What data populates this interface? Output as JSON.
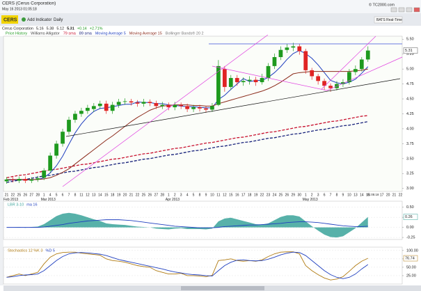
{
  "header": {
    "title": "CERS (Cerus Corporation)",
    "timestamp": "May 16 2013 01:05:18",
    "copyright": "© TC2000.com"
  },
  "toolbar": {
    "symbol": "CERS",
    "add_indicator": "Add Indicator",
    "period": "Daily",
    "feed": "BATS Real-Time"
  },
  "quote": {
    "name": "Cerus Corporation",
    "change": "+0.14",
    "change_pct": "+2.71%"
  },
  "chart_data": [
    {
      "type": "candlestick",
      "name": "Price History",
      "up_color": "#1e9a1e",
      "down_color": "#e02424",
      "categories": [
        "21",
        "22",
        "25",
        "26",
        "27",
        "28",
        "1",
        "4",
        "5",
        "6",
        "7",
        "8",
        "11",
        "12",
        "13",
        "14",
        "15",
        "18",
        "19",
        "20",
        "21",
        "22",
        "25",
        "26",
        "27",
        "28",
        "1",
        "2",
        "3",
        "4",
        "5",
        "8",
        "9",
        "10",
        "11",
        "12",
        "15",
        "16",
        "17",
        "18",
        "19",
        "22",
        "23",
        "24",
        "25",
        "26",
        "29",
        "30",
        "1",
        "2",
        "3",
        "6",
        "7",
        "8",
        "9",
        "10",
        "13",
        "14",
        "15"
      ],
      "month_labels": [
        "Feb 2013",
        null,
        null,
        null,
        null,
        null,
        "Mar 2013",
        null,
        null,
        null,
        null,
        null,
        null,
        null,
        null,
        null,
        null,
        null,
        null,
        null,
        null,
        null,
        null,
        null,
        null,
        null,
        "Apr 2013",
        null,
        null,
        null,
        null,
        null,
        null,
        null,
        null,
        null,
        null,
        null,
        null,
        null,
        null,
        null,
        null,
        null,
        null,
        null,
        null,
        null,
        "May 2013",
        null,
        null,
        null,
        null,
        null,
        null,
        null,
        null,
        null,
        null
      ],
      "open": [
        3.12,
        3.15,
        3.13,
        3.16,
        3.13,
        3.15,
        3.18,
        3.3,
        3.55,
        3.75,
        3.95,
        4.15,
        4.25,
        4.3,
        4.33,
        4.38,
        4.42,
        4.3,
        4.4,
        4.45,
        4.46,
        4.44,
        4.42,
        4.45,
        4.43,
        4.38,
        4.4,
        4.36,
        4.4,
        4.38,
        4.33,
        4.36,
        4.34,
        4.32,
        4.4,
        5.0,
        4.7,
        4.85,
        4.78,
        4.8,
        4.82,
        4.78,
        4.85,
        5.05,
        5.2,
        5.32,
        5.36,
        5.38,
        5.3,
        4.98,
        4.88,
        4.8,
        4.72,
        4.68,
        4.75,
        4.78,
        4.95,
        5.0,
        5.16
      ],
      "high": [
        3.19,
        3.19,
        3.2,
        3.2,
        3.19,
        3.21,
        3.34,
        3.6,
        3.8,
        4.0,
        4.2,
        4.3,
        4.35,
        4.4,
        4.43,
        4.47,
        4.47,
        4.45,
        4.5,
        4.51,
        4.5,
        4.48,
        4.5,
        4.49,
        4.47,
        4.45,
        4.44,
        4.45,
        4.44,
        4.42,
        4.4,
        4.4,
        4.38,
        4.43,
        5.15,
        5.05,
        4.9,
        4.9,
        4.86,
        4.88,
        4.87,
        4.92,
        5.1,
        5.26,
        5.38,
        5.42,
        5.44,
        5.42,
        5.34,
        5.02,
        4.92,
        4.84,
        4.76,
        4.8,
        4.83,
        5.0,
        5.06,
        5.2,
        5.38
      ],
      "low": [
        3.08,
        3.1,
        3.09,
        3.09,
        3.09,
        3.11,
        3.14,
        3.26,
        3.5,
        3.7,
        3.9,
        4.1,
        4.2,
        4.25,
        4.28,
        4.33,
        4.25,
        4.25,
        4.35,
        4.4,
        4.39,
        4.37,
        4.37,
        4.38,
        4.33,
        4.33,
        4.31,
        4.31,
        4.33,
        4.28,
        4.28,
        4.29,
        4.27,
        4.28,
        4.38,
        4.62,
        4.65,
        4.72,
        4.72,
        4.74,
        4.72,
        4.74,
        4.8,
        5.0,
        5.15,
        5.27,
        5.3,
        5.24,
        4.92,
        4.82,
        4.74,
        4.65,
        4.62,
        4.64,
        4.7,
        4.74,
        4.9,
        4.96,
        5.12
      ],
      "close": [
        3.15,
        3.14,
        3.16,
        3.13,
        3.15,
        3.17,
        3.3,
        3.55,
        3.75,
        3.95,
        4.15,
        4.25,
        4.3,
        4.35,
        4.38,
        4.42,
        4.3,
        4.4,
        4.45,
        4.46,
        4.44,
        4.42,
        4.45,
        4.43,
        4.38,
        4.4,
        4.36,
        4.4,
        4.38,
        4.33,
        4.36,
        4.34,
        4.32,
        4.38,
        5.05,
        4.7,
        4.85,
        4.78,
        4.8,
        4.82,
        4.78,
        4.85,
        5.05,
        5.2,
        5.32,
        5.36,
        5.38,
        5.3,
        4.98,
        4.88,
        4.8,
        4.72,
        4.68,
        4.75,
        4.78,
        4.95,
        5.0,
        5.16,
        5.31
      ],
      "series": [
        {
          "name": "Williams Alligator",
          "color": "#444444"
        },
        {
          "name": "79 sma",
          "color": "#c8102e",
          "line_style": "dashed",
          "values": [
            3.18,
            3.2,
            3.22,
            3.23,
            3.25,
            3.27,
            3.29,
            3.31,
            3.32,
            3.34,
            3.36,
            3.38,
            3.4,
            3.41,
            3.43,
            3.45,
            3.47,
            3.49,
            3.5,
            3.52,
            3.54,
            3.56,
            3.58,
            3.59,
            3.61,
            3.63,
            3.65,
            3.67,
            3.68,
            3.7,
            3.72,
            3.74,
            3.76,
            3.77,
            3.79,
            3.81,
            3.83,
            3.85,
            3.86,
            3.88,
            3.9,
            3.92,
            3.94,
            3.95,
            3.97,
            3.99,
            4.01,
            4.03,
            4.04,
            4.06,
            4.08,
            4.1,
            4.12,
            4.13,
            4.15,
            4.17,
            4.19,
            4.21,
            4.22
          ]
        },
        {
          "name": "89 sma",
          "color": "#16207a",
          "line_style": "dashed",
          "values": [
            3.1,
            3.12,
            3.14,
            3.15,
            3.17,
            3.19,
            3.21,
            3.22,
            3.24,
            3.26,
            3.28,
            3.29,
            3.31,
            3.33,
            3.35,
            3.36,
            3.38,
            3.4,
            3.42,
            3.43,
            3.45,
            3.47,
            3.49,
            3.5,
            3.52,
            3.54,
            3.56,
            3.57,
            3.59,
            3.61,
            3.63,
            3.64,
            3.66,
            3.68,
            3.7,
            3.71,
            3.73,
            3.75,
            3.77,
            3.78,
            3.8,
            3.82,
            3.84,
            3.85,
            3.87,
            3.89,
            3.91,
            3.92,
            3.94,
            3.96,
            3.98,
            3.99,
            4.01,
            4.03,
            4.05,
            4.06,
            4.08,
            4.1,
            4.12
          ]
        },
        {
          "name": "Moving Average 5",
          "color": "#1f3fbf",
          "line_style": "solid",
          "values": [
            3.14,
            3.14,
            3.15,
            3.14,
            3.15,
            3.15,
            3.18,
            3.26,
            3.38,
            3.54,
            3.74,
            3.93,
            4.08,
            4.2,
            4.29,
            4.34,
            4.35,
            4.37,
            4.39,
            4.41,
            4.41,
            4.45,
            4.44,
            4.44,
            4.42,
            4.42,
            4.4,
            4.39,
            4.38,
            4.37,
            4.37,
            4.36,
            4.35,
            4.35,
            4.49,
            4.56,
            4.66,
            4.75,
            4.84,
            4.79,
            4.81,
            4.81,
            4.86,
            4.94,
            5.04,
            5.16,
            5.26,
            5.31,
            5.26,
            5.18,
            5.07,
            4.94,
            4.81,
            4.77,
            4.75,
            4.78,
            4.83,
            4.93,
            5.04
          ]
        },
        {
          "name": "Moving Average 15",
          "color": "#8b2a1a",
          "line_style": "solid",
          "values": [
            3.15,
            3.15,
            3.15,
            3.15,
            3.15,
            3.15,
            3.16,
            3.18,
            3.22,
            3.27,
            3.33,
            3.41,
            3.49,
            3.57,
            3.65,
            3.73,
            3.81,
            3.88,
            3.96,
            4.04,
            4.12,
            4.19,
            4.25,
            4.31,
            4.35,
            4.38,
            4.39,
            4.4,
            4.4,
            4.4,
            4.39,
            4.39,
            4.38,
            4.38,
            4.42,
            4.45,
            4.48,
            4.51,
            4.54,
            4.57,
            4.6,
            4.63,
            4.67,
            4.72,
            4.78,
            4.85,
            4.92,
            4.94,
            4.95,
            4.96,
            4.96,
            4.96,
            4.96,
            4.96,
            4.96,
            4.96,
            4.97,
            4.98,
            5.0
          ]
        },
        {
          "name": "Bollinger Bands® 20 2",
          "color": "#777777"
        }
      ],
      "ylim": [
        2.95,
        5.55
      ],
      "yticks": [
        {
          "value": 3,
          "label": "3.00"
        },
        {
          "value": 3.25,
          "label": "3.25"
        },
        {
          "value": 3.5,
          "label": "3.50"
        },
        {
          "value": 3.75,
          "label": "3.75"
        },
        {
          "value": 4,
          "label": "4.00"
        },
        {
          "value": 4.25,
          "label": "4.25"
        },
        {
          "value": 4.5,
          "label": "4.50"
        },
        {
          "value": 4.75,
          "label": "4.75"
        },
        {
          "value": 5,
          "label": "5.00"
        },
        {
          "value": 5.25,
          "label": "5.25"
        },
        {
          "value": 5.5,
          "label": "5.50"
        }
      ],
      "current_time": "01:05:18",
      "future_dates": [
        "17",
        "20",
        "21",
        "22"
      ]
    },
    {
      "type": "area",
      "series": [
        {
          "name": "LBR 3-10",
          "color": "#3aa39a",
          "values": [
            0.0,
            0.0,
            0.01,
            -0.01,
            0.01,
            0.02,
            0.08,
            0.18,
            0.28,
            0.34,
            0.36,
            0.34,
            0.3,
            0.25,
            0.2,
            0.16,
            0.1,
            0.08,
            0.07,
            0.06,
            0.04,
            0.02,
            0.01,
            0.0,
            -0.03,
            -0.04,
            -0.05,
            -0.03,
            -0.02,
            -0.04,
            -0.04,
            -0.04,
            -0.05,
            -0.03,
            0.15,
            0.22,
            0.24,
            0.2,
            0.16,
            0.12,
            0.08,
            0.07,
            0.1,
            0.18,
            0.26,
            0.3,
            0.3,
            0.27,
            0.15,
            0.03,
            -0.08,
            -0.18,
            -0.24,
            -0.25,
            -0.22,
            -0.12,
            -0.02,
            0.12,
            0.26
          ]
        },
        {
          "name": "ma 16",
          "color": "#1f3fbf",
          "values": [
            0.0,
            0.0,
            0.0,
            0.0,
            0.0,
            0.0,
            0.01,
            0.03,
            0.05,
            0.07,
            0.1,
            0.12,
            0.14,
            0.16,
            0.17,
            0.18,
            0.19,
            0.19,
            0.19,
            0.18,
            0.17,
            0.15,
            0.13,
            0.11,
            0.09,
            0.07,
            0.05,
            0.03,
            0.02,
            0.01,
            0.0,
            -0.01,
            -0.01,
            -0.01,
            0.0,
            0.02,
            0.03,
            0.04,
            0.05,
            0.06,
            0.06,
            0.07,
            0.08,
            0.09,
            0.1,
            0.12,
            0.13,
            0.14,
            0.14,
            0.13,
            0.12,
            0.1,
            0.08,
            0.06,
            0.04,
            0.03,
            0.02,
            0.02,
            0.03
          ]
        }
      ],
      "ylim": [
        -0.3,
        0.65
      ],
      "yticks": [
        {
          "value": 0.5,
          "label": "0.50"
        },
        {
          "value": 0.25,
          "label": "0.25"
        },
        {
          "value": 0,
          "label": "0.00"
        },
        {
          "value": -0.25,
          "label": "-0.25"
        }
      ]
    },
    {
      "type": "line",
      "series": [
        {
          "name": "Stochastics 12 %K 3",
          "color": "#b07a10",
          "values": [
            20,
            25,
            30,
            25,
            30,
            35,
            60,
            80,
            90,
            94,
            95,
            95,
            92,
            90,
            88,
            86,
            75,
            70,
            68,
            65,
            60,
            55,
            52,
            50,
            40,
            35,
            30,
            30,
            32,
            25,
            25,
            24,
            22,
            26,
            70,
            72,
            75,
            70,
            68,
            70,
            68,
            72,
            82,
            90,
            95,
            96,
            96,
            90,
            55,
            40,
            28,
            18,
            12,
            15,
            22,
            38,
            55,
            68,
            76.74
          ]
        },
        {
          "name": "%D 5",
          "color": "#1f3fbf",
          "values": [
            20,
            22,
            25,
            27,
            28,
            30,
            40,
            55,
            70,
            82,
            90,
            93,
            94,
            93,
            91,
            89,
            85,
            79,
            73,
            69,
            65,
            61,
            57,
            53,
            49,
            45,
            40,
            36,
            33,
            30,
            28,
            27,
            25,
            24,
            40,
            55,
            65,
            71,
            72,
            70,
            69,
            70,
            74,
            80,
            87,
            92,
            95,
            94,
            85,
            70,
            55,
            40,
            28,
            20,
            16,
            20,
            30,
            45,
            58
          ]
        }
      ],
      "ylim": [
        0,
        110
      ],
      "yticks": [
        {
          "value": 100,
          "label": "100.00"
        },
        {
          "value": 75,
          "label": "75.00"
        },
        {
          "value": 50,
          "label": "50.00"
        },
        {
          "value": 25,
          "label": "25.00"
        }
      ]
    }
  ]
}
